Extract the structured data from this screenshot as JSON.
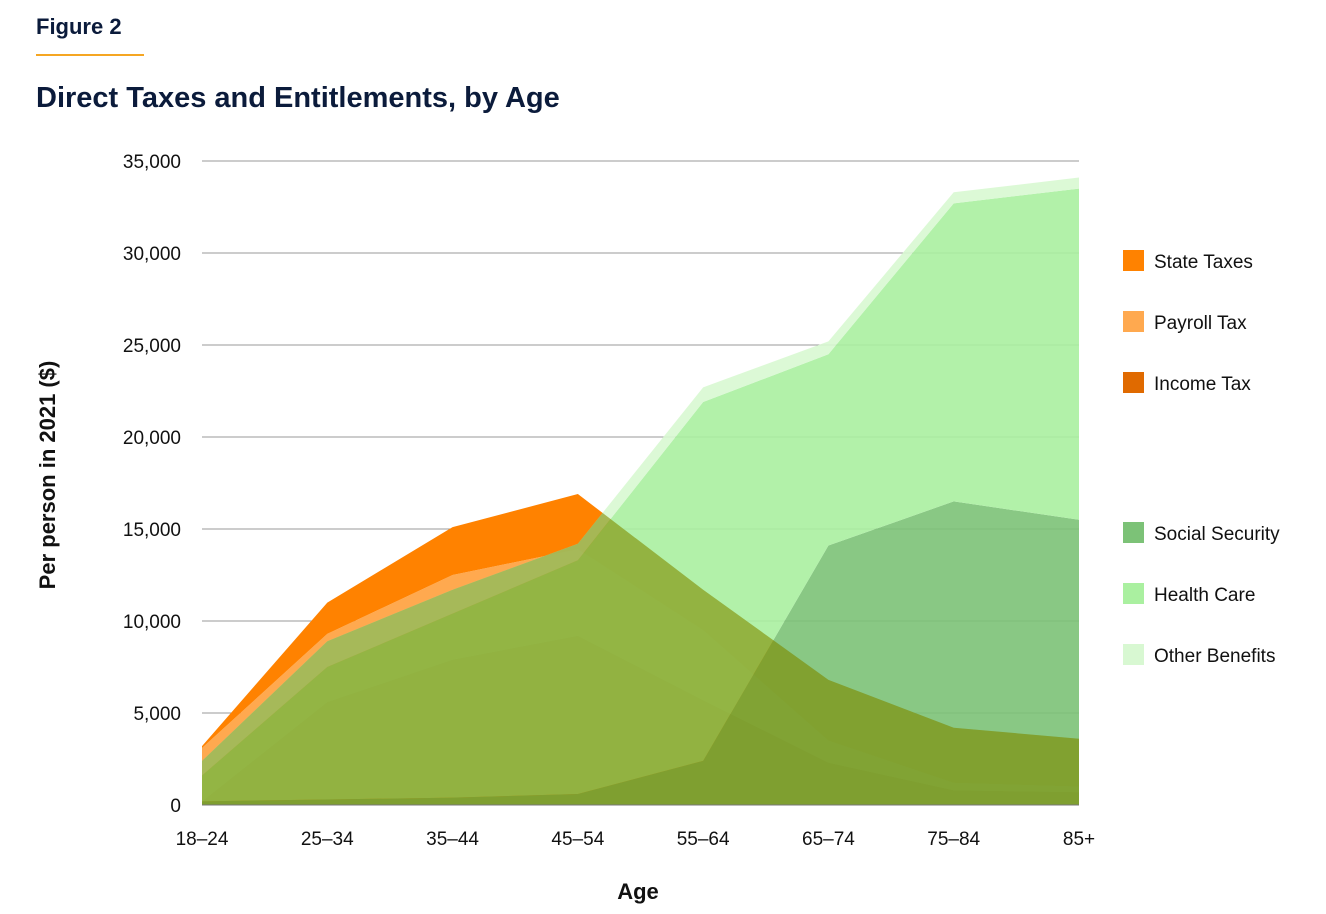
{
  "header": {
    "figure_label": "Figure 2",
    "title": "Direct Taxes and Entitlements, by Age"
  },
  "colors": {
    "state_taxes": "#ff8200",
    "payroll_tax": "#ffa94f",
    "income_tax": "#e06a00",
    "social_security": "#7cc277",
    "health_care": "#aaf0a0",
    "other_benefits": "#d8f8d2",
    "overlap": "#7a8a00",
    "grid": "#999999"
  },
  "chart_data": {
    "type": "area",
    "title": "Direct Taxes and Entitlements, by Age",
    "xlabel": "Age",
    "ylabel": "Per person in 2021 ($)",
    "categories": [
      "18–24",
      "25–34",
      "35–44",
      "45–54",
      "55–64",
      "65–74",
      "75–84",
      "85+"
    ],
    "ylim": [
      0,
      35000
    ],
    "yticks": [
      "0",
      "5,000",
      "10,000",
      "15,000",
      "20,000",
      "25,000",
      "30,000",
      "35,000"
    ],
    "grid": true,
    "legend_placement": "right",
    "stacked": true,
    "groups": [
      {
        "group": "taxes",
        "series": [
          {
            "name": "Income Tax",
            "values": [
              200,
              5600,
              7900,
              9200,
              5700,
              2300,
              800,
              700
            ]
          },
          {
            "name": "Payroll Tax",
            "values": [
              2900,
              3700,
              4600,
              4700,
              3800,
              1200,
              400,
              300
            ]
          },
          {
            "name": "State Taxes",
            "values": [
              100,
              1700,
              2600,
              3000,
              2200,
              3300,
              3000,
              2600
            ]
          }
        ]
      },
      {
        "group": "entitlements",
        "series": [
          {
            "name": "Social Security",
            "values": [
              200,
              300,
              400,
              600,
              2400,
              14100,
              16500,
              15500
            ]
          },
          {
            "name": "Health Care",
            "values": [
              1400,
              7200,
              10000,
              12700,
              19500,
              10400,
              16200,
              18000
            ]
          },
          {
            "name": "Other Benefits",
            "values": [
              800,
              1400,
              1300,
              900,
              800,
              700,
              600,
              600
            ]
          }
        ]
      }
    ],
    "legend": [
      "State Taxes",
      "Payroll Tax",
      "Income Tax",
      "Social Security",
      "Health Care",
      "Other Benefits"
    ]
  }
}
